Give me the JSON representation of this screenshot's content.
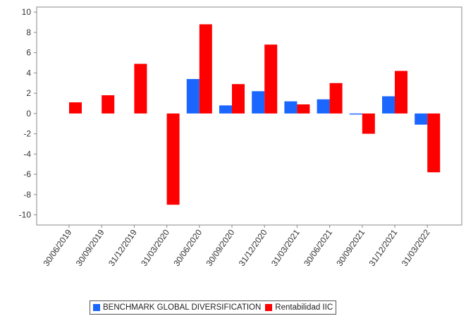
{
  "chart_data": {
    "type": "bar",
    "categories": [
      "30/06/2019",
      "30/09/2019",
      "31/12/2019",
      "31/03/2020",
      "30/06/2020",
      "30/09/2020",
      "31/12/2020",
      "31/03/2021",
      "30/06/2021",
      "30/09/2021",
      "31/12/2021",
      "31/03/2022"
    ],
    "series": [
      {
        "name": "BENCHMARK GLOBAL DIVERSIFICATION",
        "color": "#1a66ff",
        "values": [
          null,
          null,
          null,
          null,
          3.4,
          0.8,
          2.2,
          1.2,
          1.4,
          -0.1,
          1.7,
          -1.1
        ]
      },
      {
        "name": "Rentabilidad IIC",
        "color": "#ff0000",
        "values": [
          1.1,
          1.8,
          4.9,
          -9.0,
          8.8,
          2.9,
          6.8,
          0.9,
          3.0,
          -2.0,
          4.2,
          -5.8
        ]
      }
    ],
    "yticks": [
      10,
      8,
      6,
      4,
      2,
      0,
      -2,
      -4,
      -6,
      -8,
      -10
    ],
    "ylim": [
      -11,
      10.5
    ],
    "legend_position": "bottom"
  }
}
